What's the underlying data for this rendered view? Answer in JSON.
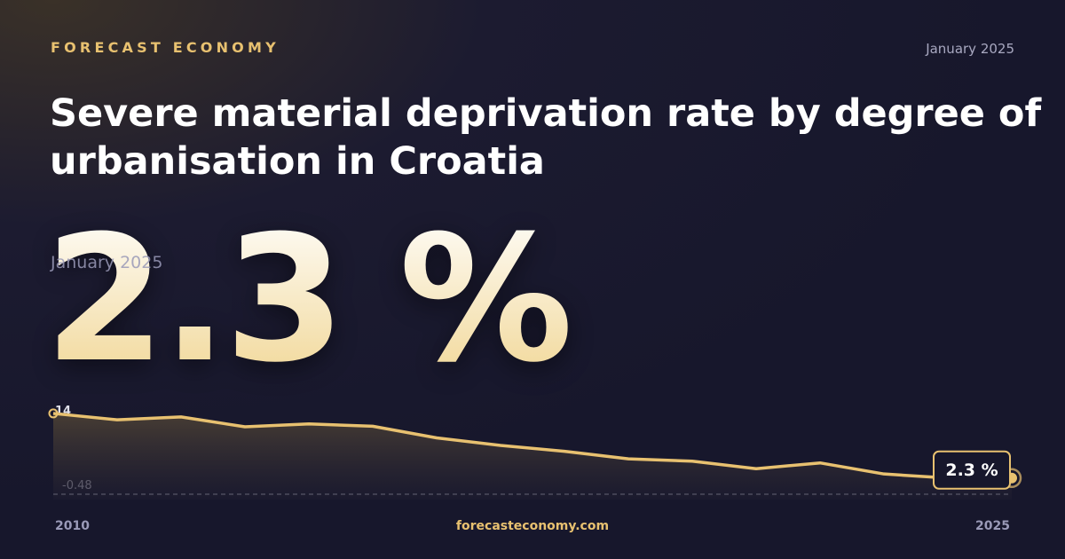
{
  "brand": "FORECAST ECONOMY",
  "date": "January 2025",
  "footer": "forecasteconomy.com",
  "chart_data": {
    "type": "area",
    "title": "Severe material deprivation rate by degree of urbanisation in Croatia",
    "headline": "2.3 %",
    "headline_date": "January 2025",
    "categories": [
      "2010",
      null,
      null,
      null,
      null,
      null,
      null,
      null,
      null,
      null,
      null,
      null,
      null,
      null,
      null,
      "2025"
    ],
    "values": [
      13.4,
      12.3,
      12.8,
      11.1,
      11.6,
      11.2,
      9.2,
      7.9,
      6.9,
      5.6,
      5.2,
      3.9,
      4.9,
      3.0,
      2.3,
      2.3
    ],
    "value_labels": [
      null,
      null,
      null,
      null,
      null,
      null,
      null,
      null,
      null,
      null,
      null,
      null,
      null,
      null,
      null,
      "2.3 %"
    ],
    "color": "#e8c170",
    "ylim": [
      -0.48,
      14
    ],
    "yticks": [
      -0.48,
      14
    ]
  }
}
